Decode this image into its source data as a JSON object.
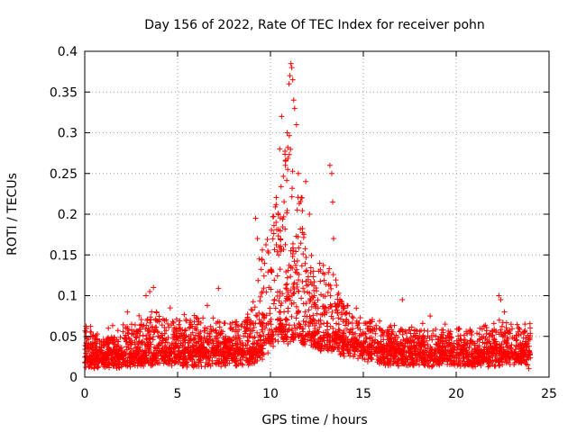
{
  "chart_data": {
    "type": "scatter",
    "title": "Day 156 of 2022, Rate Of TEC Index for receiver pohn",
    "xlabel": "GPS time / hours",
    "ylabel": "ROTI / TECUs",
    "xlim": [
      0,
      25
    ],
    "ylim": [
      0,
      0.4
    ],
    "xticks": [
      0,
      5,
      10,
      15,
      20,
      25
    ],
    "yticks": [
      0,
      0.05,
      0.1,
      0.15,
      0.2,
      0.25,
      0.3,
      0.35,
      0.4
    ],
    "xtick_labels": [
      "0",
      "5",
      "10",
      "15",
      "20",
      "25"
    ],
    "ytick_labels": [
      "0",
      "0.05",
      "0.1",
      "0.15",
      "0.2",
      "0.25",
      "0.3",
      "0.35",
      "0.4"
    ],
    "grid": true,
    "marker": "+",
    "color": "#ff0000",
    "series": [
      {
        "name": "ROTI",
        "envelope": {
          "x": [
            0,
            1,
            2,
            3,
            4,
            5,
            6,
            7,
            8,
            9,
            9.5,
            10,
            10.5,
            11,
            11.5,
            12,
            12.5,
            13,
            13.5,
            14,
            15,
            16,
            17,
            18,
            19,
            20,
            21,
            22,
            22.5,
            23,
            24
          ],
          "base": [
            0.02,
            0.02,
            0.02,
            0.022,
            0.022,
            0.022,
            0.022,
            0.022,
            0.022,
            0.024,
            0.03,
            0.04,
            0.05,
            0.05,
            0.05,
            0.045,
            0.04,
            0.04,
            0.04,
            0.035,
            0.03,
            0.025,
            0.022,
            0.022,
            0.022,
            0.022,
            0.022,
            0.022,
            0.025,
            0.022,
            0.02
          ],
          "top": [
            0.06,
            0.05,
            0.06,
            0.07,
            0.075,
            0.07,
            0.07,
            0.065,
            0.065,
            0.08,
            0.15,
            0.2,
            0.25,
            0.3,
            0.25,
            0.18,
            0.13,
            0.14,
            0.12,
            0.09,
            0.07,
            0.06,
            0.06,
            0.06,
            0.06,
            0.055,
            0.055,
            0.06,
            0.07,
            0.06,
            0.06
          ]
        },
        "outliers": [
          {
            "x": 0.1,
            "y": 0.06
          },
          {
            "x": 2.3,
            "y": 0.08
          },
          {
            "x": 3.3,
            "y": 0.1
          },
          {
            "x": 3.5,
            "y": 0.105
          },
          {
            "x": 3.7,
            "y": 0.11
          },
          {
            "x": 4.6,
            "y": 0.085
          },
          {
            "x": 6.6,
            "y": 0.088
          },
          {
            "x": 7.2,
            "y": 0.109
          },
          {
            "x": 9.2,
            "y": 0.195
          },
          {
            "x": 9.3,
            "y": 0.17
          },
          {
            "x": 9.4,
            "y": 0.145
          },
          {
            "x": 10.3,
            "y": 0.19
          },
          {
            "x": 10.5,
            "y": 0.28
          },
          {
            "x": 10.6,
            "y": 0.32
          },
          {
            "x": 10.8,
            "y": 0.26
          },
          {
            "x": 10.9,
            "y": 0.3
          },
          {
            "x": 11.0,
            "y": 0.36
          },
          {
            "x": 11.05,
            "y": 0.37
          },
          {
            "x": 11.1,
            "y": 0.385
          },
          {
            "x": 11.15,
            "y": 0.38
          },
          {
            "x": 11.2,
            "y": 0.365
          },
          {
            "x": 11.25,
            "y": 0.34
          },
          {
            "x": 11.3,
            "y": 0.33
          },
          {
            "x": 11.4,
            "y": 0.31
          },
          {
            "x": 11.5,
            "y": 0.25
          },
          {
            "x": 11.7,
            "y": 0.22
          },
          {
            "x": 11.9,
            "y": 0.24
          },
          {
            "x": 12.1,
            "y": 0.2
          },
          {
            "x": 13.2,
            "y": 0.26
          },
          {
            "x": 13.3,
            "y": 0.25
          },
          {
            "x": 13.35,
            "y": 0.215
          },
          {
            "x": 13.4,
            "y": 0.17
          },
          {
            "x": 17.1,
            "y": 0.095
          },
          {
            "x": 18.6,
            "y": 0.075
          },
          {
            "x": 22.3,
            "y": 0.1
          },
          {
            "x": 22.4,
            "y": 0.095
          },
          {
            "x": 22.6,
            "y": 0.08
          },
          {
            "x": 23.7,
            "y": 0.065
          }
        ]
      }
    ]
  }
}
